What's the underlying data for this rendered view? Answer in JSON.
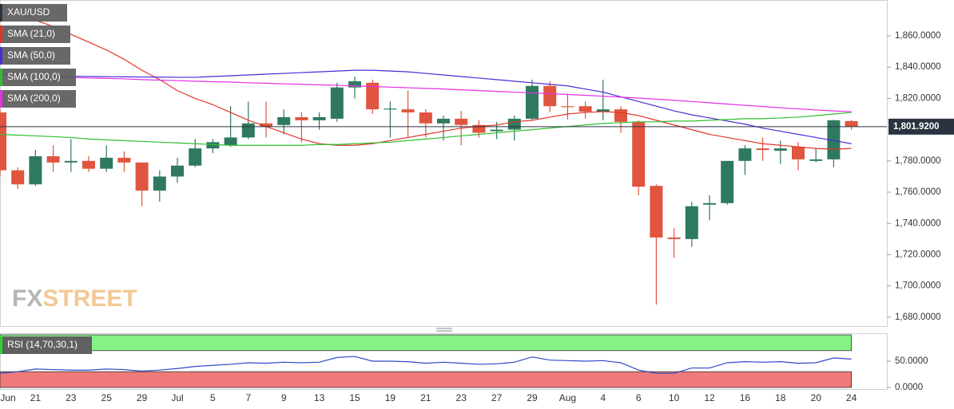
{
  "chart_data": [
    {
      "type": "candlestick",
      "name": "XAU/USD",
      "categories": [
        "Jun",
        null,
        "21",
        null,
        "23",
        null,
        "25",
        null,
        "29",
        null,
        "Jul",
        null,
        "5",
        null,
        "7",
        null,
        "9",
        null,
        "13",
        null,
        "15",
        null,
        "19",
        null,
        "21",
        null,
        "23",
        null,
        "27",
        null,
        "29",
        null,
        "Aug",
        null,
        "4",
        null,
        "6",
        null,
        "10",
        null,
        "12",
        null,
        "16",
        null,
        "18",
        null,
        "20",
        null,
        "24"
      ],
      "open": [
        1811,
        1774,
        1765,
        1783,
        1779,
        1780,
        1775,
        1782,
        1779,
        1761,
        1770,
        1777,
        1788,
        1790,
        1795,
        1804,
        1803,
        1808,
        1806,
        1807,
        1827,
        1830,
        1813,
        1813,
        1811,
        1804,
        1807,
        1803,
        1799,
        1800,
        1807,
        1828,
        1815,
        1815,
        1811.5,
        1813,
        1805,
        1764,
        1731,
        1730,
        1752,
        1753,
        1780,
        1788,
        1786.5,
        1789,
        1780,
        1781,
        1805.5
      ],
      "high": [
        1813,
        1776,
        1787,
        1790,
        1794,
        1783,
        1790,
        1786,
        1779,
        1774,
        1782,
        1794,
        1794,
        1815,
        1818,
        1818,
        1813,
        1811,
        1811,
        1830,
        1834,
        1832,
        1818,
        1825,
        1813,
        1809,
        1812,
        1806,
        1805,
        1809,
        1832,
        1831,
        1823,
        1818,
        1832,
        1815,
        1806,
        1765,
        1737,
        1754,
        1758,
        1780,
        1790,
        1795,
        1793,
        1792,
        1788,
        1806.5,
        1806
      ],
      "low": [
        1770,
        1762,
        1764,
        1773,
        1773,
        1773,
        1773,
        1773,
        1751,
        1754,
        1766,
        1776,
        1785,
        1789,
        1794,
        1795,
        1797,
        1792,
        1800,
        1805,
        1820,
        1810,
        1795,
        1795,
        1795,
        1793,
        1790,
        1795,
        1794,
        1793,
        1806,
        1811,
        1806.5,
        1807,
        1806,
        1798,
        1758,
        1688,
        1718,
        1725,
        1742,
        1752,
        1771,
        1780,
        1778,
        1774,
        1779,
        1776,
        1800
      ],
      "close": [
        1774,
        1765,
        1783,
        1779,
        1780,
        1775,
        1782,
        1779,
        1761,
        1770,
        1777,
        1788,
        1792,
        1795,
        1804,
        1802,
        1808,
        1806,
        1808,
        1827,
        1831,
        1813,
        1813.5,
        1811,
        1804,
        1807,
        1803,
        1798,
        1800,
        1807,
        1828,
        1815,
        1814.5,
        1811.5,
        1813,
        1805,
        1763.5,
        1731,
        1730,
        1751,
        1753,
        1780,
        1788,
        1787,
        1788,
        1781,
        1781,
        1806,
        1802
      ],
      "up_color": "#2f7a5f",
      "down_color": "#e0553f",
      "lines": [
        {
          "name": "SMA (21,0)",
          "color": "#e3342a",
          "values": [
            1880,
            1875,
            1870,
            1866,
            1861,
            1856,
            1851,
            1845,
            1838,
            1832,
            1825,
            1820,
            1816,
            1811,
            1806,
            1802,
            1798,
            1794,
            1791,
            1790,
            1790,
            1791,
            1793,
            1795,
            1797,
            1799,
            1801,
            1802,
            1803,
            1805,
            1806,
            1808,
            1810,
            1811,
            1811.5,
            1811,
            1809,
            1806,
            1803,
            1800,
            1797,
            1795,
            1793,
            1791,
            1790,
            1789,
            1788,
            1787.5,
            1788
          ]
        },
        {
          "name": "SMA (50,0)",
          "color": "#4b2bd6",
          "values": [
            1835,
            1834.8,
            1834.6,
            1834.4,
            1834.2,
            1834,
            1833.9,
            1833.8,
            1833.7,
            1833.6,
            1833.5,
            1833.5,
            1834,
            1834.5,
            1835,
            1835.5,
            1836,
            1836.5,
            1837,
            1837.5,
            1838,
            1838,
            1837.5,
            1837,
            1836,
            1835,
            1834,
            1833,
            1832,
            1831,
            1830,
            1829,
            1828,
            1826,
            1824,
            1821,
            1818,
            1815,
            1812,
            1809.5,
            1807.5,
            1805.5,
            1803.5,
            1801,
            1799,
            1797,
            1795,
            1793,
            1791
          ]
        },
        {
          "name": "SMA (100,0)",
          "color": "#2fbf2f",
          "values": [
            1797,
            1796.5,
            1796,
            1795.5,
            1795,
            1794,
            1793.5,
            1793,
            1792.5,
            1792,
            1791.5,
            1791,
            1790.5,
            1790,
            1790,
            1790,
            1790,
            1790,
            1790.5,
            1790.5,
            1791,
            1791.5,
            1792,
            1793,
            1794,
            1795,
            1796,
            1797,
            1798,
            1799,
            1800,
            1801,
            1802,
            1803,
            1804,
            1804.5,
            1805,
            1805,
            1805.5,
            1805.5,
            1806,
            1806.5,
            1807,
            1807,
            1807.5,
            1808,
            1809,
            1810,
            1811
          ]
        },
        {
          "name": "SMA (200,0)",
          "color": "#e62ee6",
          "values": [
            1835.5,
            1835,
            1834.5,
            1834,
            1833.5,
            1833,
            1832.8,
            1832.5,
            1832,
            1831.7,
            1831.4,
            1831,
            1830.7,
            1830.4,
            1830,
            1829.7,
            1829.3,
            1829,
            1828.7,
            1828.4,
            1828,
            1827.6,
            1827.2,
            1826.8,
            1826.4,
            1826,
            1825.5,
            1825,
            1824.5,
            1824,
            1823.5,
            1823,
            1822.5,
            1822,
            1821.4,
            1820.8,
            1820.2,
            1819.5,
            1818.8,
            1818,
            1817.2,
            1816.4,
            1815.6,
            1814.8,
            1814,
            1813.3,
            1812.6,
            1812,
            1811.5
          ]
        }
      ],
      "ylim": [
        1673.8,
        1882.96
      ],
      "yticks": [
        {
          "value": 1860,
          "label": "1,860.0000"
        },
        {
          "value": 1840,
          "label": "1,840.0000"
        },
        {
          "value": 1820,
          "label": "1,820.0000"
        },
        {
          "value": 1780,
          "label": "1,780.0000"
        },
        {
          "value": 1760,
          "label": "1,760.0000"
        },
        {
          "value": 1740,
          "label": "1,740.0000"
        },
        {
          "value": 1720,
          "label": "1,720.0000"
        },
        {
          "value": 1700,
          "label": "1,700.0000"
        },
        {
          "value": 1680,
          "label": "1,680.0000"
        }
      ],
      "last_price": {
        "value": 1801.92,
        "label": "1,801.9200"
      },
      "watermark": [
        "FX",
        "STREET"
      ]
    },
    {
      "type": "line",
      "series": [
        {
          "name": "RSI (14,70,30,1)",
          "color": "#2f49c9",
          "values": [
            27,
            30,
            35,
            34,
            33,
            33,
            35,
            34,
            31,
            33,
            36,
            40,
            42,
            44,
            47,
            46,
            48,
            47,
            48,
            57,
            59,
            50,
            50,
            49,
            46,
            48,
            46,
            44,
            45,
            48,
            58,
            52,
            51,
            50,
            51,
            47,
            33,
            27,
            27,
            37,
            37,
            47,
            49,
            48,
            49,
            46,
            47,
            56,
            54
          ]
        }
      ],
      "ylim": [
        0,
        103
      ],
      "yticks": [
        {
          "value": 50,
          "label": "50.0000"
        },
        {
          "value": 0,
          "label": "0.0000"
        }
      ],
      "upper_band": 70,
      "lower_band": 30,
      "upper_color": "#86f286",
      "lower_color": "#f07a7a"
    }
  ]
}
